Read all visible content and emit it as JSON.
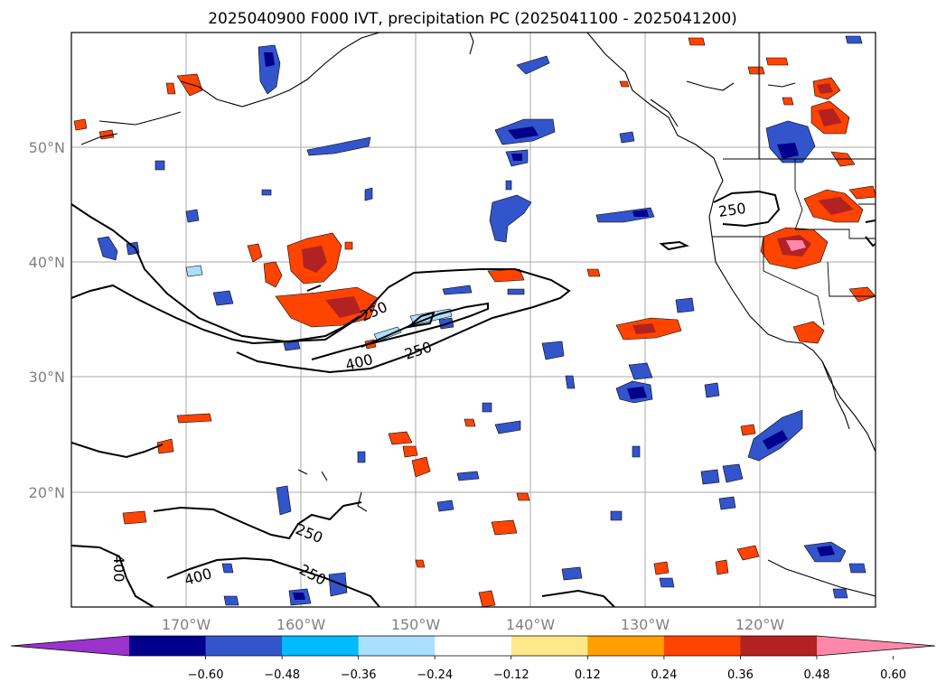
{
  "title": "2025040900 F000 IVT, precipitation PC (2025041100 - 2025041200)",
  "map": {
    "lon_labels": [
      "170°W",
      "160°W",
      "150°W",
      "140°W",
      "130°W",
      "120°W"
    ],
    "lat_labels": [
      "50°N",
      "40°N",
      "30°N",
      "20°N"
    ],
    "contour_labels": [
      "250",
      "250",
      "250",
      "400",
      "250",
      "250",
      "400",
      "400"
    ]
  },
  "colorbar": {
    "ticks": [
      "−0.60",
      "−0.48",
      "−0.36",
      "−0.24",
      "−0.12",
      "0.12",
      "0.24",
      "0.36",
      "0.48",
      "0.60"
    ],
    "colors": [
      "#9933cc",
      "#00008b",
      "#3355cc",
      "#00bbff",
      "#aae0ff",
      "#ffffff",
      "#ffe88a",
      "#ffa000",
      "#ff4400",
      "#b22222",
      "#ff88aa"
    ]
  }
}
